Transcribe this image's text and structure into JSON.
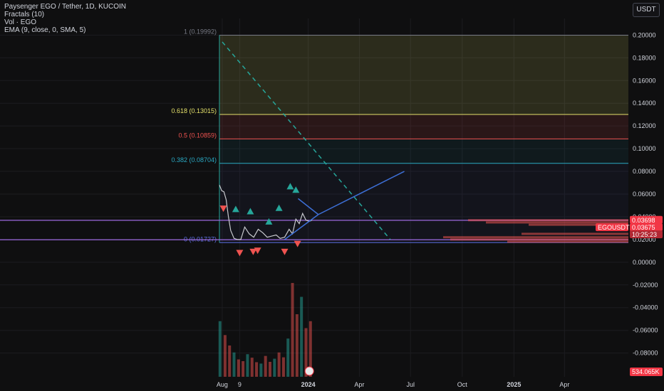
{
  "legend": {
    "title": "Paysenger EGO / Tether, 1D, KUCOIN",
    "fractals": "Fractals (10)",
    "vol": "Vol · EGO",
    "ema": "EMA (9, close, 0, SMA, 5)"
  },
  "currency_button": "USDT",
  "colors": {
    "background": "#0f0f10",
    "grid": "#1c1c20",
    "axis_text": "#d1d4dc",
    "up": "#26a69a",
    "down": "#ef5350",
    "trendline": "#3d6fd6",
    "fib_1": "#787b86",
    "fib_618": "#e4e06a",
    "fib_05": "#ef5350",
    "fib_382": "#2aa9c3",
    "fib_0": "#5b6ee1",
    "price_label": "#f23645",
    "ref_label": "#f23645"
  },
  "chart_data": {
    "type": "line",
    "title": "Paysenger EGO / Tether, 1D, KUCOIN",
    "xlabel": "",
    "ylabel": "",
    "x_tick_labels": [
      "Aug",
      "9",
      "2024",
      "Apr",
      "Jul",
      "Oct",
      "2025",
      "Apr"
    ],
    "y_tick_labels": [
      "0.20000",
      "0.18000",
      "0.16000",
      "0.14000",
      "0.12000",
      "0.10000",
      "0.08000",
      "0.06000",
      "0.04000",
      "0.02000",
      "0.00000",
      "-0.02000",
      "-0.04000",
      "-0.06000",
      "-0.08000"
    ],
    "ylim": [
      -0.094,
      0.214
    ],
    "grid": true,
    "fib_levels": [
      {
        "label": "1 (0.19992)",
        "value": 0.19992
      },
      {
        "label": "0.618 (0.13015)",
        "value": 0.13015
      },
      {
        "label": "0.5 (0.10859)",
        "value": 0.10859
      },
      {
        "label": "0.382 (0.08704)",
        "value": 0.08704
      },
      {
        "label": "0 (0.01727)",
        "value": 0.01727
      }
    ],
    "price_series": {
      "name": "EGOUSDT",
      "x": [
        "2023-07-27",
        "2023-07-31",
        "2023-08-04",
        "2023-08-08",
        "2023-08-12",
        "2023-08-16",
        "2023-08-22",
        "2023-08-28",
        "2023-09-03",
        "2023-09-10",
        "2023-09-18",
        "2023-09-26",
        "2023-10-04",
        "2023-10-12",
        "2023-10-20",
        "2023-10-28",
        "2023-11-05",
        "2023-11-12",
        "2023-11-20",
        "2023-11-28",
        "2023-12-04",
        "2023-12-10",
        "2023-12-16",
        "2023-12-22",
        "2023-12-28",
        "2024-01-03",
        "2024-01-08"
      ],
      "y": [
        0.068,
        0.063,
        0.062,
        0.055,
        0.04,
        0.028,
        0.021,
        0.02,
        0.02,
        0.031,
        0.025,
        0.022,
        0.029,
        0.026,
        0.022,
        0.023,
        0.024,
        0.021,
        0.022,
        0.029,
        0.025,
        0.038,
        0.034,
        0.043,
        0.037,
        0.036,
        0.037
      ]
    },
    "fractals_up": [
      {
        "x": "2023-08-25",
        "y": 0.046
      },
      {
        "x": "2023-09-20",
        "y": 0.044
      },
      {
        "x": "2023-10-23",
        "y": 0.035
      },
      {
        "x": "2023-11-10",
        "y": 0.047
      },
      {
        "x": "2023-11-30",
        "y": 0.066
      },
      {
        "x": "2023-12-10",
        "y": 0.063
      }
    ],
    "fractals_down": [
      {
        "x": "2023-08-03",
        "y": 0.048
      },
      {
        "x": "2023-09-01",
        "y": 0.009
      },
      {
        "x": "2023-09-25",
        "y": 0.01
      },
      {
        "x": "2023-10-03",
        "y": 0.011
      },
      {
        "x": "2023-11-20",
        "y": 0.01
      },
      {
        "x": "2023-12-13",
        "y": 0.017
      }
    ],
    "volume": {
      "name": "Vol · EGO",
      "x": [
        "2023-07-28",
        "2023-08-06",
        "2023-08-14",
        "2023-08-22",
        "2023-08-30",
        "2023-09-07",
        "2023-09-15",
        "2023-09-23",
        "2023-10-01",
        "2023-10-09",
        "2023-10-17",
        "2023-10-25",
        "2023-11-02",
        "2023-11-10",
        "2023-11-18",
        "2023-11-26",
        "2023-12-04",
        "2023-12-12",
        "2023-12-20",
        "2023-12-28",
        "2024-01-05"
      ],
      "y": [
        1600,
        1200,
        900,
        700,
        500,
        450,
        650,
        550,
        420,
        380,
        600,
        430,
        520,
        700,
        560,
        1100,
        2700,
        1800,
        2300,
        1400,
        1600
      ]
    },
    "trendlines": [
      {
        "name": "triangle-upper",
        "points": [
          {
            "x": "2023-12-14",
            "y": 0.056
          },
          {
            "x": "2024-01-19",
            "y": 0.042
          }
        ]
      },
      {
        "name": "triangle-lower",
        "points": [
          {
            "x": "2023-11-20",
            "y": 0.02
          },
          {
            "x": "2024-01-19",
            "y": 0.042
          }
        ]
      },
      {
        "name": "breakout-projection",
        "points": [
          {
            "x": "2024-01-19",
            "y": 0.042
          },
          {
            "x": "2024-06-20",
            "y": 0.08
          }
        ]
      },
      {
        "name": "downtrend-dashed",
        "points": [
          {
            "x": "2023-08-01",
            "y": 0.194
          },
          {
            "x": "2024-05-26",
            "y": 0.02
          }
        ]
      }
    ],
    "horizontal_lines": [
      {
        "name": "resistance",
        "y": 0.0369
      },
      {
        "name": "support",
        "y": 0.0198
      }
    ],
    "price_labels": [
      {
        "text": "0.03698",
        "value": 0.03698
      },
      {
        "text": "0.03675",
        "value": 0.03675
      },
      {
        "text": "10:25:23",
        "value": 0.0331
      }
    ],
    "symbol_label": "EGOUSDT",
    "volume_label": "534.065K"
  }
}
